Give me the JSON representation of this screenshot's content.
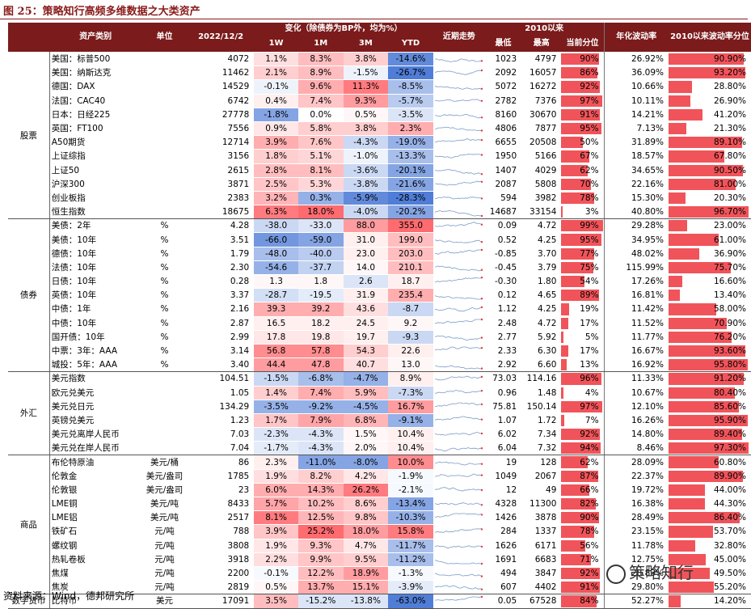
{
  "title": "图 25：策略知行高频多维数据之大类资产",
  "source": "资料来源：Wind，德邦研究所",
  "watermark": "策略知行",
  "headers": {
    "asset": "资产类别",
    "unit": "单位",
    "date": "2022/12/2",
    "change_group": "变化（除债券为BP外，均为%）",
    "w1": "1W",
    "m1": "1M",
    "m3": "3M",
    "ytd": "YTD",
    "trend": "近期走势",
    "since2010": "2010以来",
    "low": "最低",
    "high": "最高",
    "pctile": "当前分位",
    "vol": "年化波动率",
    "vol_pct": "2010以来波动率分位"
  },
  "groups": [
    {
      "name": "股票",
      "rows": [
        {
          "name": "美国：标普500",
          "unit": "",
          "val": "4072",
          "w1": "1.1%",
          "m1": "8.3%",
          "m3": "3.8%",
          "ytd": "-14.6%",
          "low": "1023",
          "high": "4797",
          "pct": "90%",
          "pv": 90,
          "vol": "26.92%",
          "vp": "90.90%",
          "vpv": 90.9,
          "c": [
            0.2,
            0.4,
            0.3,
            -0.9
          ]
        },
        {
          "name": "美国：纳斯达克",
          "unit": "",
          "val": "11462",
          "w1": "2.1%",
          "m1": "8.9%",
          "m3": "-1.5%",
          "ytd": "-26.7%",
          "low": "2092",
          "high": "16057",
          "pct": "86%",
          "pv": 86,
          "vol": "36.09%",
          "vp": "93.20%",
          "vpv": 93.2,
          "c": [
            0.3,
            0.4,
            -0.1,
            -1
          ]
        },
        {
          "name": "德国：DAX",
          "unit": "",
          "val": "14529",
          "w1": "-0.1%",
          "m1": "9.6%",
          "m3": "11.3%",
          "ytd": "-8.5%",
          "low": "5072",
          "high": "16272",
          "pct": "92%",
          "pv": 92,
          "vol": "10.66%",
          "vp": "28.80%",
          "vpv": 28.8,
          "c": [
            -0.1,
            0.5,
            0.8,
            -0.5
          ]
        },
        {
          "name": "法国：CAC40",
          "unit": "",
          "val": "6742",
          "w1": "0.4%",
          "m1": "7.4%",
          "m3": "9.3%",
          "ytd": "-5.7%",
          "low": "2782",
          "high": "7376",
          "pct": "97%",
          "pv": 97,
          "vol": "10.11%",
          "vp": "26.90%",
          "vpv": 26.9,
          "c": [
            0.1,
            0.35,
            0.6,
            -0.4
          ]
        },
        {
          "name": "日本：日经225",
          "unit": "",
          "val": "27778",
          "w1": "-1.8%",
          "m1": "0.0%",
          "m3": "0.5%",
          "ytd": "-3.5%",
          "low": "8160",
          "high": "30670",
          "pct": "91%",
          "pv": 91,
          "vol": "14.21%",
          "vp": "41.20%",
          "vpv": 41.2,
          "c": [
            -0.7,
            0,
            0.05,
            -0.2
          ]
        },
        {
          "name": "英国：FT100",
          "unit": "",
          "val": "7556",
          "w1": "0.9%",
          "m1": "5.8%",
          "m3": "3.8%",
          "ytd": "2.3%",
          "low": "4806",
          "high": "7877",
          "pct": "95%",
          "pv": 95,
          "vol": "7.13%",
          "vp": "21.30%",
          "vpv": 21.3,
          "c": [
            0.15,
            0.3,
            0.3,
            0.5
          ]
        },
        {
          "name": "A50期货",
          "unit": "",
          "val": "12714",
          "w1": "3.9%",
          "m1": "7.6%",
          "m3": "-4.3%",
          "ytd": "-19.0%",
          "low": "6655",
          "high": "20508",
          "pct": "50%",
          "pv": 50,
          "vol": "31.89%",
          "vp": "89.10%",
          "vpv": 89.1,
          "c": [
            0.5,
            0.35,
            -0.3,
            -0.6
          ]
        },
        {
          "name": "上证综指",
          "unit": "",
          "val": "3156",
          "w1": "1.8%",
          "m1": "5.1%",
          "m3": "-1.0%",
          "ytd": "-13.3%",
          "low": "1950",
          "high": "5166",
          "pct": "67%",
          "pv": 67,
          "vol": "18.57%",
          "vp": "67.80%",
          "vpv": 67.8,
          "c": [
            0.3,
            0.25,
            -0.1,
            -0.5
          ]
        },
        {
          "name": "上证50",
          "unit": "",
          "val": "2615",
          "w1": "2.8%",
          "m1": "8.1%",
          "m3": "-3.6%",
          "ytd": "-20.1%",
          "low": "1407",
          "high": "4029",
          "pct": "62%",
          "pv": 62,
          "vol": "34.65%",
          "vp": "90.50%",
          "vpv": 90.5,
          "c": [
            0.4,
            0.4,
            -0.3,
            -0.7
          ]
        },
        {
          "name": "沪深300",
          "unit": "",
          "val": "3871",
          "w1": "2.5%",
          "m1": "5.3%",
          "m3": "-3.8%",
          "ytd": "-21.6%",
          "low": "2087",
          "high": "5808",
          "pct": "70%",
          "pv": 70,
          "vol": "22.16%",
          "vp": "81.00%",
          "vpv": 81,
          "c": [
            0.35,
            0.25,
            -0.3,
            -0.7
          ]
        },
        {
          "name": "创业板指",
          "unit": "",
          "val": "2383",
          "w1": "3.2%",
          "m1": "0.3%",
          "m3": "-5.9%",
          "ytd": "-28.3%",
          "low": "594",
          "high": "3982",
          "pct": "78%",
          "pv": 78,
          "vol": "15.30%",
          "vp": "20.30%",
          "vpv": 20.3,
          "c": [
            0.45,
            -0.6,
            -0.9,
            -1
          ]
        },
        {
          "name": "恒生指数",
          "unit": "",
          "val": "18675",
          "w1": "6.3%",
          "m1": "18.0%",
          "m3": "-4.0%",
          "ytd": "-20.2%",
          "low": "14687",
          "high": "33154",
          "pct": "3%",
          "pv": 3,
          "vol": "40.80%",
          "vp": "96.70%",
          "vpv": 96.7,
          "c": [
            0.8,
            0.9,
            -0.3,
            -0.7
          ]
        }
      ]
    },
    {
      "name": "债券",
      "rows": [
        {
          "name": "美债：2年",
          "unit": "%",
          "val": "4.28",
          "w1": "-38.0",
          "m1": "-33.0",
          "m3": "88.0",
          "ytd": "355.0",
          "low": "0.09",
          "high": "4.72",
          "pct": "99%",
          "pv": 99,
          "vol": "29.28%",
          "vp": "23.00%",
          "vpv": 23,
          "c": [
            -0.3,
            -0.2,
            0.6,
            0.9
          ]
        },
        {
          "name": "美债：10年",
          "unit": "%",
          "val": "3.51",
          "w1": "-66.0",
          "m1": "-59.0",
          "m3": "31.0",
          "ytd": "199.0",
          "low": "0.52",
          "high": "4.25",
          "pct": "95%",
          "pv": 95,
          "vol": "34.95%",
          "vp": "61.00%",
          "vpv": 61,
          "c": [
            -0.8,
            -0.7,
            0.1,
            0.4
          ]
        },
        {
          "name": "德债：10年",
          "unit": "%",
          "val": "1.79",
          "w1": "-48.0",
          "m1": "-40.0",
          "m3": "23.0",
          "ytd": "203.0",
          "low": "-0.85",
          "high": "3.70",
          "pct": "77%",
          "pv": 77,
          "vol": "48.02%",
          "vp": "36.90%",
          "vpv": 36.9,
          "c": [
            -0.5,
            -0.4,
            0.1,
            0.4
          ]
        },
        {
          "name": "法债：10年",
          "unit": "%",
          "val": "2.30",
          "w1": "-54.6",
          "m1": "-37.7",
          "m3": "14.0",
          "ytd": "210.1",
          "low": "-0.45",
          "high": "3.79",
          "pct": "75%",
          "pv": 75,
          "vol": "115.99%",
          "vp": "75.70%",
          "vpv": 75.7,
          "c": [
            -0.6,
            -0.35,
            0.05,
            0.4
          ]
        },
        {
          "name": "日债：10年",
          "unit": "%",
          "val": "0.28",
          "w1": "1.3",
          "m1": "1.8",
          "m3": "2.6",
          "ytd": "18.7",
          "low": "-0.30",
          "high": "1.80",
          "pct": "54%",
          "pv": 54,
          "vol": "17.26%",
          "vp": "16.60%",
          "vpv": 16.6,
          "c": [
            0.05,
            0.05,
            -0.2,
            0.1
          ]
        },
        {
          "name": "英债：10年",
          "unit": "%",
          "val": "3.37",
          "w1": "-28.7",
          "m1": "-19.5",
          "m3": "31.9",
          "ytd": "235.4",
          "low": "0.12",
          "high": "4.65",
          "pct": "89%",
          "pv": 89,
          "vol": "16.81%",
          "vp": "13.40%",
          "vpv": 13.4,
          "c": [
            -0.25,
            -0.15,
            0.1,
            0.5
          ]
        },
        {
          "name": "中债：1年",
          "unit": "%",
          "val": "2.16",
          "w1": "39.3",
          "m1": "39.2",
          "m3": "43.6",
          "ytd": "-8.7",
          "low": "1.12",
          "high": "4.25",
          "pct": "19%",
          "pv": 19,
          "vol": "11.42%",
          "vp": "58.00%",
          "vpv": 58,
          "c": [
            0.5,
            0.5,
            0.2,
            -0.3
          ]
        },
        {
          "name": "中债：10年",
          "unit": "%",
          "val": "2.87",
          "w1": "16.5",
          "m1": "18.2",
          "m3": "24.5",
          "ytd": "9.2",
          "low": "2.48",
          "high": "4.72",
          "pct": "17%",
          "pv": 17,
          "vol": "11.52%",
          "vp": "70.90%",
          "vpv": 70.9,
          "c": [
            0.1,
            0.1,
            0.1,
            0.05
          ]
        },
        {
          "name": "国开债：10年",
          "unit": "%",
          "val": "2.99",
          "w1": "17.8",
          "m1": "19.8",
          "m3": "19.7",
          "ytd": "-9.3",
          "low": "2.77",
          "high": "5.92",
          "pct": "5%",
          "pv": 5,
          "vol": "11.77%",
          "vp": "76.20%",
          "vpv": 76.2,
          "c": [
            0.15,
            0.15,
            0.1,
            -0.3
          ]
        },
        {
          "name": "中票：3年：AAA",
          "unit": "%",
          "val": "3.14",
          "w1": "56.8",
          "m1": "57.8",
          "m3": "54.3",
          "ytd": "22.6",
          "low": "2.33",
          "high": "6.30",
          "pct": "17%",
          "pv": 17,
          "vol": "16.67%",
          "vp": "93.60%",
          "vpv": 93.6,
          "c": [
            0.7,
            0.7,
            0.3,
            0.1
          ]
        },
        {
          "name": "城投：5年：AAA",
          "unit": "%",
          "val": "3.40",
          "w1": "44.4",
          "m1": "47.8",
          "m3": "40.7",
          "ytd": "13.0",
          "low": "2.92",
          "high": "6.60",
          "pct": "13%",
          "pv": 13,
          "vol": "16.92%",
          "vp": "95.80%",
          "vpv": 95.8,
          "c": [
            0.6,
            0.6,
            0.2,
            0.05
          ]
        }
      ]
    },
    {
      "name": "外汇",
      "rows": [
        {
          "name": "美元指数",
          "unit": "",
          "val": "104.51",
          "w1": "-1.5%",
          "m1": "-6.8%",
          "m3": "-4.7%",
          "ytd": "8.9%",
          "low": "73.03",
          "high": "114.16",
          "pct": "96%",
          "pv": 96,
          "vol": "11.33%",
          "vp": "91.20%",
          "vpv": 91.2,
          "c": [
            -0.3,
            -0.5,
            -0.6,
            0.1
          ]
        },
        {
          "name": "欧元兑美元",
          "unit": "",
          "val": "1.05",
          "w1": "1.4%",
          "m1": "7.4%",
          "m3": "5.9%",
          "ytd": "-7.3%",
          "low": "0.96",
          "high": "1.48",
          "pct": "4%",
          "pv": 4,
          "vol": "10.67%",
          "vp": "80.40%",
          "vpv": 80.4,
          "c": [
            0.3,
            0.5,
            0.4,
            -0.3
          ]
        },
        {
          "name": "美元兑日元",
          "unit": "",
          "val": "134.29",
          "w1": "-3.5%",
          "m1": "-9.2%",
          "m3": "-4.5%",
          "ytd": "16.7%",
          "low": "75.81",
          "high": "150.14",
          "pct": "97%",
          "pv": 97,
          "vol": "12.10%",
          "vp": "85.60%",
          "vpv": 85.6,
          "c": [
            -0.6,
            -0.6,
            -0.6,
            0.6
          ]
        },
        {
          "name": "英镑兑美元",
          "unit": "",
          "val": "1.23",
          "w1": "1.7%",
          "m1": "7.9%",
          "m3": "6.8%",
          "ytd": "-9.1%",
          "low": "1.07",
          "high": "1.72",
          "pct": "7%",
          "pv": 7,
          "vol": "16.26%",
          "vp": "95.90%",
          "vpv": 95.9,
          "c": [
            0.35,
            0.55,
            0.45,
            -0.6
          ]
        },
        {
          "name": "美元兑离岸人民币",
          "unit": "",
          "val": "7.03",
          "w1": "-2.3%",
          "m1": "-4.3%",
          "m3": "1.5%",
          "ytd": "10.4%",
          "low": "6.02",
          "high": "7.34",
          "pct": "92%",
          "pv": 92,
          "vol": "14.80%",
          "vp": "89.40%",
          "vpv": 89.4,
          "c": [
            -0.2,
            -0.2,
            0.05,
            0.1
          ]
        },
        {
          "name": "美元兑在岸人民币",
          "unit": "",
          "val": "7.04",
          "w1": "-1.7%",
          "m1": "-4.3%",
          "m3": "2.0%",
          "ytd": "10.4%",
          "low": "6.04",
          "high": "7.32",
          "pct": "94%",
          "pv": 94,
          "vol": "8.46%",
          "vp": "97.30%",
          "vpv": 97.3,
          "c": [
            -0.15,
            -0.2,
            0.05,
            0.1
          ]
        }
      ]
    },
    {
      "name": "商品",
      "rows": [
        {
          "name": "布伦特原油",
          "unit": "美元/桶",
          "val": "86",
          "w1": "2.3%",
          "m1": "-11.0%",
          "m3": "-8.0%",
          "ytd": "10.0%",
          "low": "19",
          "high": "128",
          "pct": "62%",
          "pv": 62,
          "vol": "28.09%",
          "vp": "60.80%",
          "vpv": 60.8,
          "c": [
            0.1,
            -0.7,
            -0.7,
            0.7
          ]
        },
        {
          "name": "伦敦金",
          "unit": "美元/盎司",
          "val": "1785",
          "w1": "1.9%",
          "m1": "8.2%",
          "m3": "4.2%",
          "ytd": "-1.9%",
          "low": "1049",
          "high": "2067",
          "pct": "87%",
          "pv": 87,
          "vol": "22.37%",
          "vp": "89.90%",
          "vpv": 89.9,
          "c": [
            0.2,
            0.3,
            0.15,
            -0.05
          ]
        },
        {
          "name": "伦敦银",
          "unit": "美元/盎司",
          "val": "23",
          "w1": "6.0%",
          "m1": "14.3%",
          "m3": "26.2%",
          "ytd": "-2.1%",
          "low": "12",
          "high": "49",
          "pct": "66%",
          "pv": 66,
          "vol": "19.72%",
          "vp": "44.00%",
          "vpv": 44,
          "c": [
            0.5,
            0.5,
            0.8,
            -0.05
          ]
        },
        {
          "name": "LME铜",
          "unit": "美元/吨",
          "val": "8433",
          "w1": "5.7%",
          "m1": "10.2%",
          "m3": "8.6%",
          "ytd": "-13.4%",
          "low": "4328",
          "high": "11300",
          "pct": "82%",
          "pv": 82,
          "vol": "16.38%",
          "vp": "44.30%",
          "vpv": 44.3,
          "c": [
            0.55,
            0.4,
            0.3,
            -0.7
          ]
        },
        {
          "name": "LME铝",
          "unit": "美元/吨",
          "val": "2517",
          "w1": "8.1%",
          "m1": "12.5%",
          "m3": "9.8%",
          "ytd": "-10.3%",
          "low": "1426",
          "high": "3878",
          "pct": "90%",
          "pv": 90,
          "vol": "28.49%",
          "vp": "86.40%",
          "vpv": 86.4,
          "c": [
            0.8,
            0.45,
            0.35,
            -0.6
          ]
        },
        {
          "name": "铁矿石",
          "unit": "元/吨",
          "val": "788",
          "w1": "3.9%",
          "m1": "25.2%",
          "m3": "18.0%",
          "ytd": "15.8%",
          "low": "284",
          "high": "1337",
          "pct": "78%",
          "pv": 78,
          "vol": "23.15%",
          "vp": "53.70%",
          "vpv": 53.7,
          "c": [
            0.35,
            0.9,
            0.6,
            0.8
          ]
        },
        {
          "name": "螺纹钢",
          "unit": "元/吨",
          "val": "3808",
          "w1": "1.9%",
          "m1": "9.3%",
          "m3": "4.7%",
          "ytd": "-11.7%",
          "low": "1626",
          "high": "6171",
          "pct": "56%",
          "pv": 56,
          "vol": "11.78%",
          "vp": "32.80%",
          "vpv": 32.8,
          "c": [
            0.15,
            0.35,
            0.15,
            -0.5
          ]
        },
        {
          "name": "热轧卷板",
          "unit": "元/吨",
          "val": "3918",
          "w1": "2.2%",
          "m1": "9.9%",
          "m3": "9.5%",
          "ytd": "-11.2%",
          "low": "1691",
          "high": "6683",
          "pct": "71%",
          "pv": 71,
          "vol": "12.75%",
          "vp": "45.00%",
          "vpv": 45,
          "c": [
            0.2,
            0.35,
            0.3,
            -0.5
          ]
        },
        {
          "name": "焦煤",
          "unit": "元/吨",
          "val": "2200",
          "w1": "-0.1%",
          "m1": "12.2%",
          "m3": "18.9%",
          "ytd": "-1.3%",
          "low": "494",
          "high": "3847",
          "pct": "92%",
          "pv": 92,
          "vol": "28.83%",
          "vp": "49.50%",
          "vpv": 49.5,
          "c": [
            -0.05,
            0.4,
            0.6,
            -0.05
          ]
        },
        {
          "name": "焦炭",
          "unit": "元/吨",
          "val": "2819",
          "w1": "0.5%",
          "m1": "13.7%",
          "m3": "15.1%",
          "ytd": "-3.9%",
          "low": "607",
          "high": "4402",
          "pct": "91%",
          "pv": 91,
          "vol": "29.80%",
          "vp": "55.20%",
          "vpv": 55.2,
          "c": [
            0.05,
            0.5,
            0.5,
            -0.15
          ]
        }
      ]
    },
    {
      "name": "数字货币",
      "rows": [
        {
          "name": "比特币",
          "unit": "美元",
          "val": "17091",
          "w1": "3.5%",
          "m1": "-15.2%",
          "m3": "-13.8%",
          "ytd": "-63.0%",
          "low": "0.05",
          "high": "67528",
          "pct": "84%",
          "pv": 84,
          "vol": "52.27%",
          "vp": "14.20%",
          "vpv": 14.2,
          "c": [
            0.4,
            -0.2,
            -0.2,
            -1
          ]
        }
      ]
    }
  ]
}
